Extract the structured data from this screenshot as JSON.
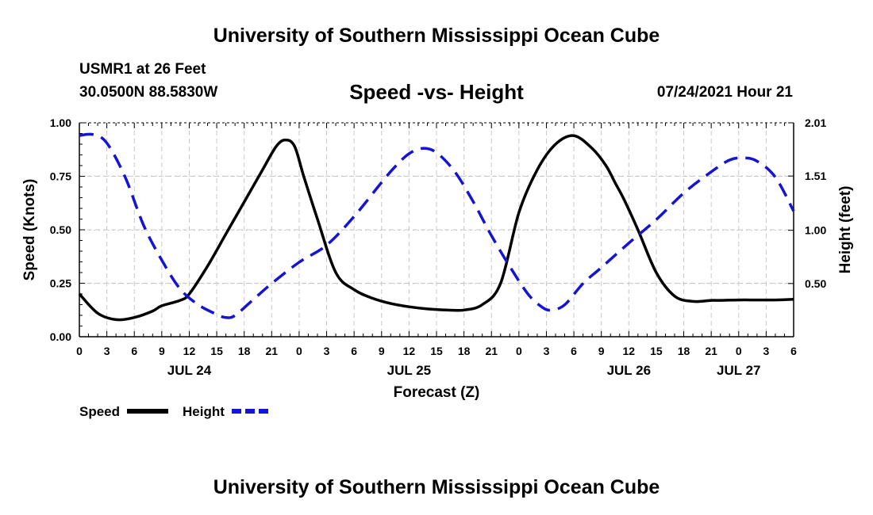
{
  "header": {
    "title": "University of Southern Mississippi Ocean Cube",
    "station": "USMR1 at 26 Feet",
    "coordinates": "30.0500N  88.5830W",
    "subtitle": "Speed -vs- Height",
    "datetime": "07/24/2021 Hour 21"
  },
  "footer": {
    "title": "University of Southern Mississippi Ocean Cube"
  },
  "colors": {
    "speed": "#000000",
    "height": "#1414d2",
    "grid": "#c8c8c8"
  },
  "chart_data": {
    "type": "line",
    "title": "Speed -vs- Height",
    "xlabel": "Forecast (Z)",
    "ylabel": "Speed (Knots)",
    "y2label": "Height (feet)",
    "xlim": [
      0,
      78
    ],
    "ylim": [
      0,
      1
    ],
    "y2lim": [
      0.0,
      2.01
    ],
    "x_tick_hours": [
      0,
      3,
      6,
      9,
      12,
      15,
      18,
      21,
      24,
      27,
      30,
      33,
      36,
      39,
      42,
      45,
      48,
      51,
      54,
      57,
      60,
      63,
      66,
      69,
      72,
      75,
      78
    ],
    "x_tick_labels": [
      "0",
      "3",
      "6",
      "9",
      "12",
      "15",
      "18",
      "21",
      "0",
      "3",
      "6",
      "9",
      "12",
      "15",
      "18",
      "21",
      "0",
      "3",
      "6",
      "9",
      "12",
      "15",
      "18",
      "21",
      "0",
      "3",
      "6"
    ],
    "date_labels": [
      {
        "label": "JUL 24",
        "hour": 12
      },
      {
        "label": "JUL 25",
        "hour": 36
      },
      {
        "label": "JUL 26",
        "hour": 60
      },
      {
        "label": "JUL 27",
        "hour": 72
      }
    ],
    "y_ticks": [
      0,
      0.25,
      0.5,
      0.75,
      1.0
    ],
    "y_tick_labels": [
      "0.00",
      "0.25",
      "0.50",
      "0.75",
      "1.00"
    ],
    "y2_ticks": [
      0.5,
      1.0,
      1.51,
      2.01
    ],
    "y2_tick_labels": [
      "0.50",
      "1.00",
      "1.51",
      "2.01"
    ],
    "grid": true,
    "legend_position": "bottom-left",
    "series": [
      {
        "name": "Speed",
        "axis": "left",
        "style": "solid",
        "x": [
          0,
          2,
          4,
          6,
          8,
          9,
          11,
          12,
          14,
          16,
          18,
          20,
          21.5,
          22.5,
          23.5,
          24.5,
          26,
          28,
          30,
          32,
          34,
          36,
          38,
          40,
          42,
          44,
          46,
          48,
          50,
          52,
          54,
          56,
          57.5,
          58.5,
          59.5,
          61,
          63,
          65,
          67,
          69,
          70,
          72,
          74,
          76,
          78
        ],
        "y": [
          0.2,
          0.11,
          0.08,
          0.09,
          0.12,
          0.145,
          0.17,
          0.2,
          0.33,
          0.48,
          0.63,
          0.78,
          0.89,
          0.92,
          0.89,
          0.75,
          0.55,
          0.3,
          0.22,
          0.18,
          0.155,
          0.14,
          0.13,
          0.125,
          0.125,
          0.15,
          0.25,
          0.58,
          0.78,
          0.9,
          0.94,
          0.88,
          0.8,
          0.72,
          0.64,
          0.5,
          0.3,
          0.19,
          0.165,
          0.17,
          0.17,
          0.172,
          0.172,
          0.172,
          0.175
        ]
      },
      {
        "name": "Height",
        "axis": "right",
        "style": "dashed",
        "x": [
          0,
          1.5,
          3,
          5,
          7,
          9,
          11,
          13,
          15,
          16,
          17,
          19,
          21,
          24,
          27,
          30,
          33,
          34.5,
          36,
          37.5,
          39,
          41,
          43,
          45,
          47,
          49,
          50.5,
          51.5,
          53,
          55,
          57,
          60,
          63,
          66,
          69,
          71,
          72.5,
          74,
          76,
          78
        ],
        "y": [
          1.89,
          1.9,
          1.82,
          1.5,
          1.05,
          0.72,
          0.45,
          0.3,
          0.21,
          0.18,
          0.2,
          0.35,
          0.5,
          0.7,
          0.86,
          1.13,
          1.45,
          1.6,
          1.72,
          1.77,
          1.73,
          1.55,
          1.27,
          0.95,
          0.66,
          0.4,
          0.28,
          0.25,
          0.3,
          0.5,
          0.65,
          0.88,
          1.1,
          1.35,
          1.55,
          1.66,
          1.68,
          1.65,
          1.5,
          1.18
        ]
      }
    ],
    "legend": [
      {
        "label": "Speed",
        "style": "solid"
      },
      {
        "label": "Height",
        "style": "dashed"
      }
    ]
  }
}
